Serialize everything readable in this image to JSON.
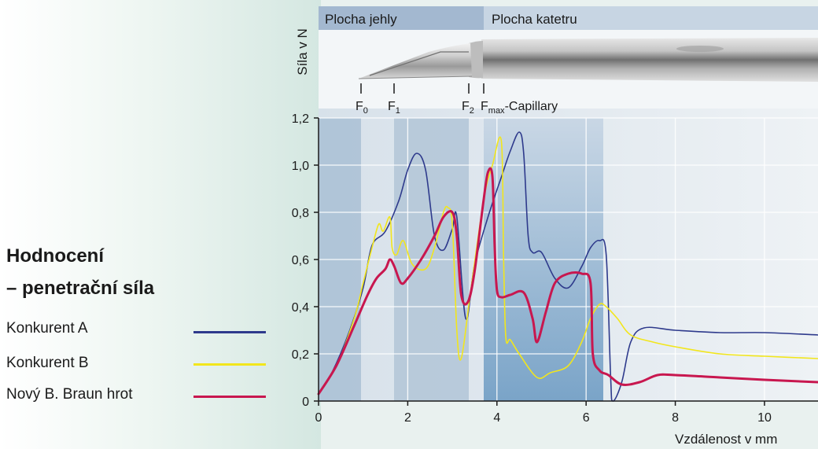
{
  "panel": {
    "title_line1": "Hodnocení",
    "title_line2": "– penetrační síla"
  },
  "zones": {
    "needle": "Plocha jehly",
    "catheter": "Plocha katetru"
  },
  "markers": [
    "F0",
    "F1",
    "F2",
    "Fmax-Capillary"
  ],
  "chart_data": {
    "type": "line",
    "ylabel": "Síla v N",
    "xlabel": "Vzdálenost v mm",
    "xlim": [
      0,
      11.2
    ],
    "ylim": [
      0,
      1.2
    ],
    "x_ticks": [
      0,
      2,
      4,
      6,
      8,
      10
    ],
    "x_tick_labels": [
      "0",
      "2",
      "4",
      "6",
      "8",
      "10"
    ],
    "y_ticks": [
      0,
      0.2,
      0.4,
      0.6,
      0.8,
      1.0,
      1.2
    ],
    "y_tick_labels": [
      "0",
      "0,2",
      "0,4",
      "0,6",
      "0,8",
      "1,0",
      "1,2"
    ],
    "grid": true,
    "series": [
      {
        "name": "Konkurent A",
        "color": "#2e3a8c",
        "x": [
          0,
          0.3,
          0.7,
          1.0,
          1.2,
          1.5,
          1.8,
          2.0,
          2.2,
          2.4,
          2.6,
          2.8,
          3.0,
          3.1,
          3.3,
          3.5,
          3.8,
          4.1,
          4.3,
          4.5,
          4.6,
          4.7,
          4.8,
          5.0,
          5.3,
          5.6,
          5.9,
          6.1,
          6.3,
          6.45,
          6.55,
          6.6,
          6.8,
          7.0,
          7.3,
          8,
          9,
          10,
          11.2
        ],
        "y": [
          0.03,
          0.12,
          0.3,
          0.48,
          0.66,
          0.72,
          0.85,
          0.98,
          1.05,
          0.98,
          0.7,
          0.64,
          0.73,
          0.78,
          0.35,
          0.58,
          0.78,
          0.95,
          1.06,
          1.14,
          1.05,
          0.7,
          0.63,
          0.63,
          0.52,
          0.48,
          0.57,
          0.65,
          0.68,
          0.62,
          0.1,
          0.0,
          0.08,
          0.25,
          0.31,
          0.3,
          0.29,
          0.29,
          0.28
        ]
      },
      {
        "name": "Konkurent B",
        "color": "#f2e61c",
        "x": [
          0,
          0.4,
          0.8,
          1.0,
          1.2,
          1.35,
          1.45,
          1.6,
          1.65,
          1.75,
          1.9,
          2.1,
          2.4,
          2.6,
          2.8,
          2.9,
          3.0,
          3.1,
          3.2,
          3.4,
          3.7,
          3.9,
          4.1,
          4.15,
          4.2,
          4.3,
          4.5,
          4.9,
          5.2,
          5.6,
          5.9,
          6.1,
          6.3,
          6.45,
          6.7,
          7.0,
          7.5,
          8,
          9,
          10,
          11.2
        ],
        "y": [
          0.03,
          0.15,
          0.35,
          0.5,
          0.65,
          0.75,
          0.72,
          0.78,
          0.65,
          0.62,
          0.68,
          0.58,
          0.56,
          0.65,
          0.8,
          0.82,
          0.75,
          0.3,
          0.18,
          0.45,
          0.85,
          1.0,
          1.1,
          0.6,
          0.27,
          0.26,
          0.2,
          0.1,
          0.12,
          0.15,
          0.25,
          0.35,
          0.41,
          0.4,
          0.35,
          0.28,
          0.25,
          0.23,
          0.2,
          0.19,
          0.18
        ]
      },
      {
        "name": "Nový B. Braun hrot",
        "color": "#c8174f",
        "x": [
          0,
          0.4,
          0.8,
          1.1,
          1.3,
          1.5,
          1.6,
          1.7,
          1.85,
          2.0,
          2.3,
          2.6,
          2.8,
          3.0,
          3.1,
          3.2,
          3.35,
          3.5,
          3.7,
          3.8,
          3.9,
          3.95,
          4.0,
          4.1,
          4.3,
          4.6,
          4.8,
          4.9,
          5.1,
          5.3,
          5.6,
          5.9,
          6.1,
          6.15,
          6.3,
          6.5,
          6.8,
          7.2,
          7.6,
          8,
          9,
          10,
          11.2
        ],
        "y": [
          0.03,
          0.15,
          0.32,
          0.45,
          0.52,
          0.56,
          0.6,
          0.57,
          0.5,
          0.52,
          0.6,
          0.7,
          0.78,
          0.8,
          0.7,
          0.45,
          0.42,
          0.55,
          0.85,
          0.97,
          0.95,
          0.65,
          0.47,
          0.44,
          0.45,
          0.46,
          0.35,
          0.25,
          0.38,
          0.5,
          0.54,
          0.54,
          0.5,
          0.2,
          0.13,
          0.11,
          0.07,
          0.08,
          0.11,
          0.11,
          0.1,
          0.09,
          0.08
        ]
      }
    ]
  }
}
